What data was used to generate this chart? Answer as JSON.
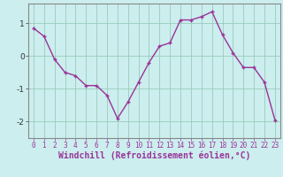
{
  "x": [
    0,
    1,
    2,
    3,
    4,
    5,
    6,
    7,
    8,
    9,
    10,
    11,
    12,
    13,
    14,
    15,
    16,
    17,
    18,
    19,
    20,
    21,
    22,
    23
  ],
  "y": [
    0.85,
    0.6,
    -0.1,
    -0.5,
    -0.6,
    -0.9,
    -0.9,
    -1.2,
    -1.9,
    -1.4,
    -0.8,
    -0.2,
    0.3,
    0.4,
    1.1,
    1.1,
    1.2,
    1.35,
    0.65,
    0.1,
    -0.35,
    -0.35,
    -0.8,
    -1.95
  ],
  "line_color": "#993399",
  "marker": "+",
  "marker_size": 3,
  "bg_color": "#cceeee",
  "grid_color": "#99ccbb",
  "axis_color": "#888888",
  "xlabel": "Windchill (Refroidissement éolien,°C)",
  "xlabel_color": "#993399",
  "ylabel_ticks": [
    -2,
    -1,
    0,
    1
  ],
  "xtick_labels": [
    "0",
    "1",
    "2",
    "3",
    "4",
    "5",
    "6",
    "7",
    "8",
    "9",
    "10",
    "11",
    "12",
    "13",
    "14",
    "15",
    "16",
    "17",
    "18",
    "19",
    "20",
    "21",
    "22",
    "23"
  ],
  "ylim": [
    -2.5,
    1.6
  ],
  "xlim": [
    -0.5,
    23.5
  ],
  "tick_fontsize": 5.5,
  "xlabel_fontsize": 7.0,
  "lw": 1.0
}
